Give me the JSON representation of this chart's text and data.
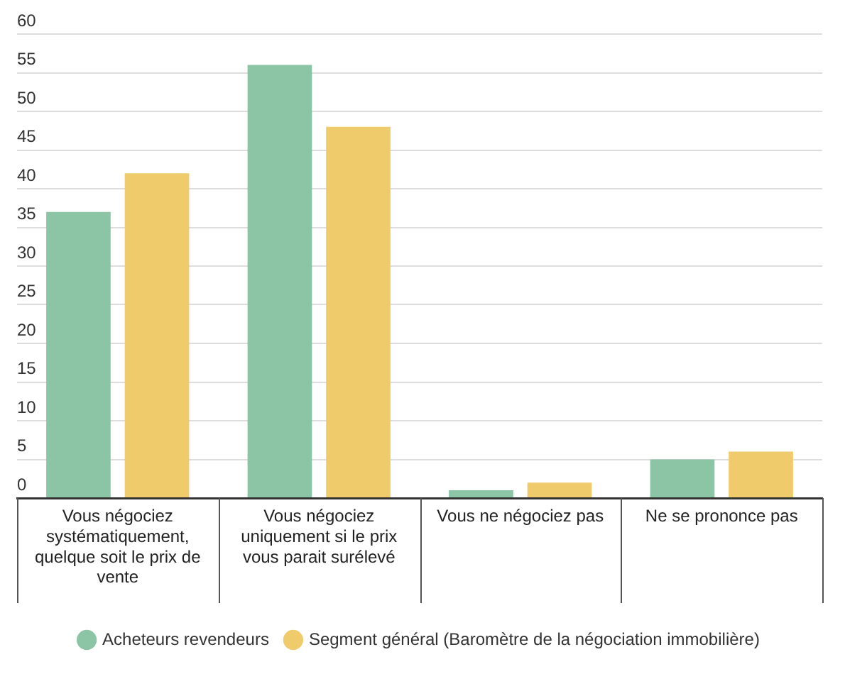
{
  "chart_data": {
    "type": "bar",
    "categories": [
      "Vous négociez systématiquement, quelque soit le prix de vente",
      "Vous négociez uniquement si le prix vous parait surélevé",
      "Vous ne négociez pas",
      "Ne se prononce pas"
    ],
    "series": [
      {
        "name": "Acheteurs revendeurs",
        "color": "#8cc5a5",
        "values": [
          37,
          56,
          1,
          5
        ]
      },
      {
        "name": "Segment général (Baromètre de la négociation immobilière)",
        "color": "#f0cb6b",
        "values": [
          42,
          48,
          2,
          6
        ]
      }
    ],
    "ylim": [
      0,
      60
    ],
    "yticks": [
      0,
      5,
      10,
      15,
      20,
      25,
      30,
      35,
      40,
      45,
      50,
      55,
      60
    ],
    "grid": "y",
    "legend": "bottom"
  }
}
